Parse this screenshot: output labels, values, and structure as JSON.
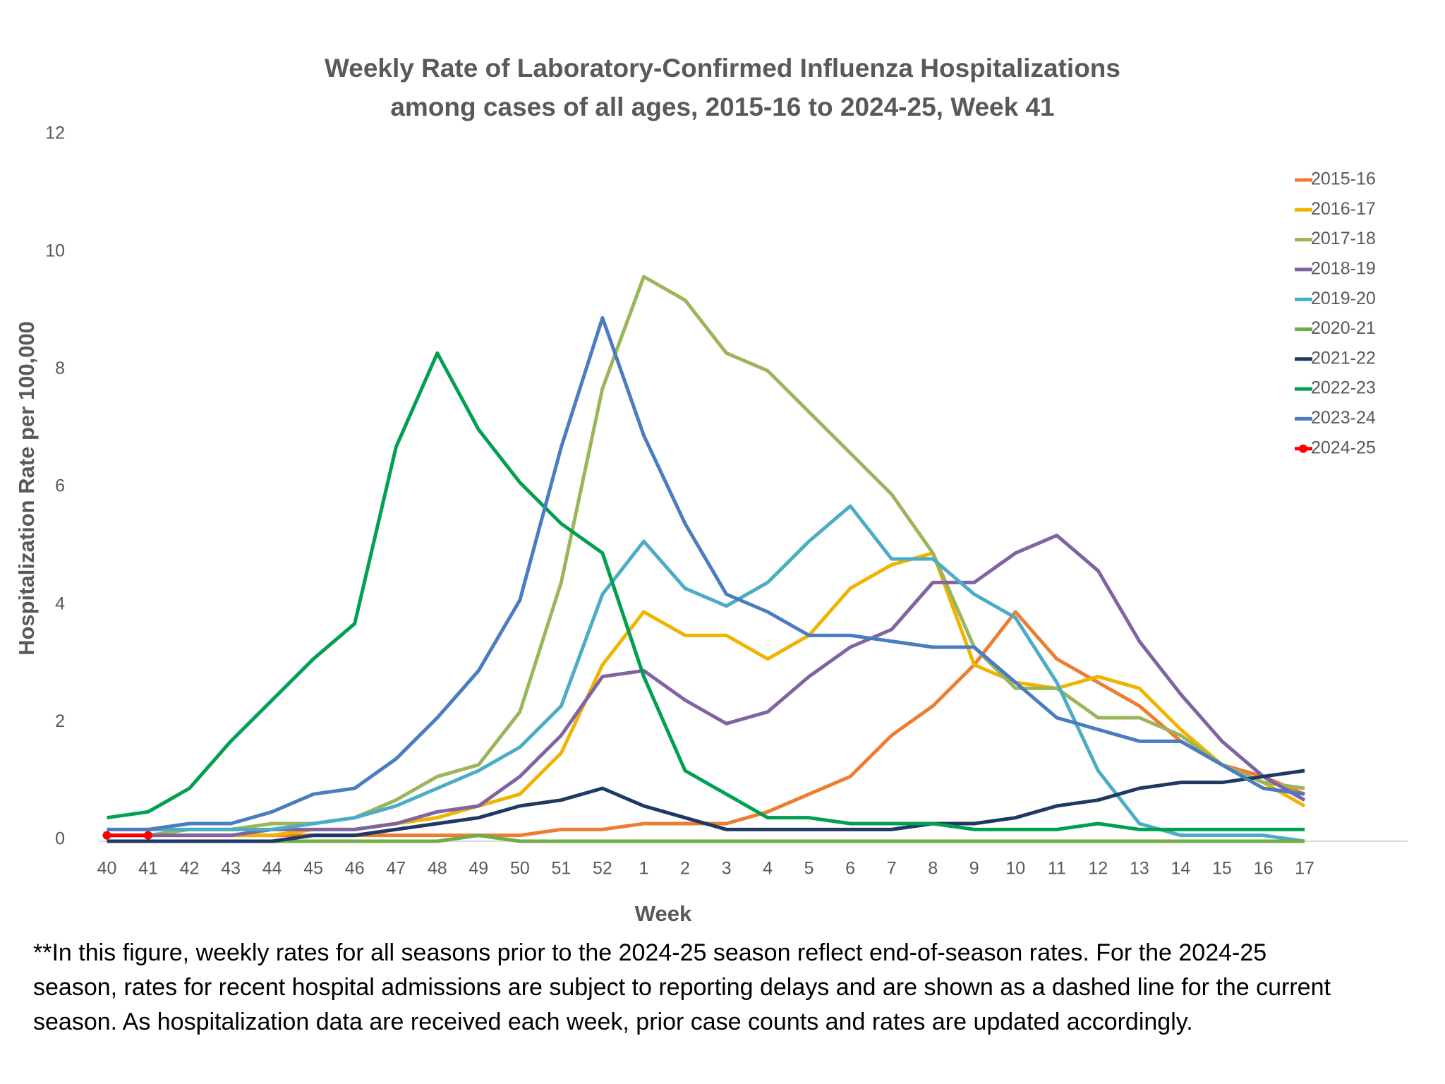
{
  "chart_data": {
    "type": "line",
    "title": [
      "Weekly Rate of Laboratory-Confirmed Influenza Hospitalizations",
      "among cases of all ages, 2015-16 to 2024-25, Week 41"
    ],
    "x_label": "Week",
    "y_label": "Hospitalization Rate per 100,000",
    "categories": [
      "40",
      "41",
      "42",
      "43",
      "44",
      "45",
      "46",
      "47",
      "48",
      "49",
      "50",
      "51",
      "52",
      "1",
      "2",
      "3",
      "4",
      "5",
      "6",
      "7",
      "8",
      "9",
      "10",
      "11",
      "12",
      "13",
      "14",
      "15",
      "16",
      "17"
    ],
    "ylim": [
      0,
      12
    ],
    "yticks": [
      0,
      2,
      4,
      6,
      8,
      10,
      12
    ],
    "grid": false,
    "legend": "right",
    "series": [
      {
        "name": "2015-16",
        "color": "#ed7d31",
        "values": [
          0.1,
          0.1,
          0.1,
          0.1,
          0.1,
          0.1,
          0.1,
          0.1,
          0.1,
          0.1,
          0.1,
          0.2,
          0.2,
          0.3,
          0.3,
          0.3,
          0.5,
          0.8,
          1.1,
          1.8,
          2.3,
          3.0,
          3.9,
          3.1,
          2.7,
          2.3,
          1.7,
          1.3,
          1.1,
          0.8
        ]
      },
      {
        "name": "2016-17",
        "color": "#f0b400",
        "values": [
          0.1,
          0.1,
          0.1,
          0.1,
          0.1,
          0.2,
          0.2,
          0.3,
          0.4,
          0.6,
          0.8,
          1.5,
          3.0,
          3.9,
          3.5,
          3.5,
          3.1,
          3.5,
          4.3,
          4.7,
          4.9,
          3.0,
          2.7,
          2.6,
          2.8,
          2.6,
          1.9,
          1.3,
          1.0,
          0.6
        ]
      },
      {
        "name": "2017-18",
        "color": "#9bb55a",
        "values": [
          0.1,
          0.1,
          0.2,
          0.2,
          0.3,
          0.3,
          0.4,
          0.7,
          1.1,
          1.3,
          2.2,
          4.4,
          7.7,
          9.6,
          9.2,
          8.3,
          8.0,
          7.3,
          6.6,
          5.9,
          4.9,
          3.3,
          2.6,
          2.6,
          2.1,
          2.1,
          1.8,
          1.3,
          1.0,
          0.9
        ]
      },
      {
        "name": "2018-19",
        "color": "#8064a2",
        "values": [
          0.1,
          0.1,
          0.1,
          0.1,
          0.2,
          0.2,
          0.2,
          0.3,
          0.5,
          0.6,
          1.1,
          1.8,
          2.8,
          2.9,
          2.4,
          2.0,
          2.2,
          2.8,
          3.3,
          3.6,
          4.4,
          4.4,
          4.9,
          5.2,
          4.6,
          3.4,
          2.5,
          1.7,
          1.1,
          0.7
        ]
      },
      {
        "name": "2019-20",
        "color": "#4bacc6",
        "values": [
          0.2,
          0.2,
          0.2,
          0.2,
          0.2,
          0.3,
          0.4,
          0.6,
          0.9,
          1.2,
          1.6,
          2.3,
          4.2,
          5.1,
          4.3,
          4.0,
          4.4,
          5.1,
          5.7,
          4.8,
          4.8,
          4.2,
          3.8,
          2.7,
          1.2,
          0.3,
          0.1,
          0.1,
          0.1,
          0.0
        ]
      },
      {
        "name": "2020-21",
        "color": "#70ad47",
        "values": [
          0,
          0,
          0,
          0,
          0,
          0,
          0,
          0,
          0,
          0.1,
          0,
          0,
          0,
          0,
          0,
          0,
          0,
          0,
          0,
          0,
          0,
          0,
          0,
          0,
          0,
          0,
          0,
          0,
          0,
          0
        ]
      },
      {
        "name": "2021-22",
        "color": "#1f3864",
        "values": [
          0,
          0,
          0,
          0,
          0,
          0.1,
          0.1,
          0.2,
          0.3,
          0.4,
          0.6,
          0.7,
          0.9,
          0.6,
          0.4,
          0.2,
          0.2,
          0.2,
          0.2,
          0.2,
          0.3,
          0.3,
          0.4,
          0.6,
          0.7,
          0.9,
          1.0,
          1.0,
          1.1,
          1.2
        ]
      },
      {
        "name": "2022-23",
        "color": "#00a050",
        "values": [
          0.4,
          0.5,
          0.9,
          1.7,
          2.4,
          3.1,
          3.7,
          6.7,
          8.3,
          7.0,
          6.1,
          5.4,
          4.9,
          2.8,
          1.2,
          0.8,
          0.4,
          0.4,
          0.3,
          0.3,
          0.3,
          0.2,
          0.2,
          0.2,
          0.3,
          0.2,
          0.2,
          0.2,
          0.2,
          0.2
        ]
      },
      {
        "name": "2023-24",
        "color": "#4a7cc2",
        "values": [
          0.2,
          0.2,
          0.3,
          0.3,
          0.5,
          0.8,
          0.9,
          1.4,
          2.1,
          2.9,
          4.1,
          6.7,
          8.9,
          6.9,
          5.4,
          4.2,
          3.9,
          3.5,
          3.5,
          3.4,
          3.3,
          3.3,
          2.7,
          2.1,
          1.9,
          1.7,
          1.7,
          1.3,
          0.9,
          0.8
        ]
      },
      {
        "name": "2024-25",
        "color": "#ff0000",
        "markers": true,
        "values": [
          0.1,
          0.1,
          null,
          null,
          null,
          null,
          null,
          null,
          null,
          null,
          null,
          null,
          null,
          null,
          null,
          null,
          null,
          null,
          null,
          null,
          null,
          null,
          null,
          null,
          null,
          null,
          null,
          null,
          null,
          null
        ]
      }
    ],
    "footnote": [
      "**In this figure, weekly rates for all seasons prior to the 2024-25 season reflect end-of-season rates. For the 2024-25",
      "season, rates for recent hospital admissions are subject to reporting delays and are shown as a dashed line for the current",
      "season. As hospitalization data are received each week, prior case counts and rates are updated accordingly."
    ]
  }
}
